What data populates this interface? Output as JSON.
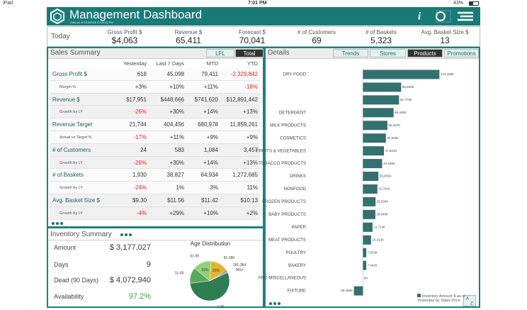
{
  "status_bar": {
    "device": "iPad",
    "time": "7:01 PM",
    "battery": "43%"
  },
  "header": {
    "title": "Management Dashboard",
    "subtitle": "Data as of 9/15/2016 11:00:48 PM"
  },
  "today": {
    "label": "Today",
    "kpis": [
      {
        "label": "Gross Profit $",
        "value": "$4,063"
      },
      {
        "label": "Revenue $",
        "value": "65,411"
      },
      {
        "label": "Forecast $",
        "value": "70,041"
      },
      {
        "label": "# of Customers",
        "value": "69"
      },
      {
        "label": "# of Baskets",
        "value": "5,323"
      },
      {
        "label": "Avg. Basket Size $",
        "value": "13"
      }
    ]
  },
  "sales_summary": {
    "title": "Sales Summary",
    "tabs": [
      "LFL",
      "Total"
    ],
    "active_tab": 1,
    "columns": [
      "Yesterday",
      "Last 7 Days",
      "MTD",
      "YTD"
    ],
    "rows": [
      {
        "label": "Gross Profit $",
        "sub": false,
        "cells": [
          "618",
          "45,098",
          "79,411",
          "-2,329,842"
        ]
      },
      {
        "label": "Margin %",
        "sub": true,
        "cells": [
          "+3%",
          "+10%",
          "+11%",
          "-18%"
        ]
      },
      {
        "label": "Revenue  $",
        "sub": false,
        "cells": [
          "$17,951",
          "$448,666",
          "$741,620",
          "$12,891,442"
        ]
      },
      {
        "label": "Growth by LY",
        "sub": true,
        "cells": [
          "-26%",
          "+30%",
          "+14%",
          "+13%"
        ]
      },
      {
        "label": "Revenue Target",
        "sub": false,
        "cells": [
          "21,744",
          "404,456",
          "680,978",
          "11,859,261"
        ]
      },
      {
        "label": "Actual vs Target %",
        "sub": true,
        "cells": [
          "-17%",
          "+11%",
          "+9%",
          "+9%"
        ]
      },
      {
        "label": "# of Customers",
        "sub": false,
        "cells": [
          "24",
          "583",
          "1,084",
          "3,457"
        ]
      },
      {
        "label": "Growth by LY",
        "sub": true,
        "cells": [
          "-26%",
          "+30%",
          "+14%",
          "+13%"
        ]
      },
      {
        "label": "# of Baskets",
        "sub": false,
        "cells": [
          "1,930",
          "38,827",
          "64,934",
          "1,272,685"
        ]
      },
      {
        "label": "Growth by LY",
        "sub": true,
        "cells": [
          "-24%",
          "1%",
          "3%",
          "11%"
        ]
      },
      {
        "label": "Avg. Basket Size $",
        "sub": false,
        "cells": [
          "$9.30",
          "$11.56",
          "$11.42",
          "$10.13"
        ]
      },
      {
        "label": "Growth by LY",
        "sub": true,
        "cells": [
          "-4%",
          "+29%",
          "+10%",
          "+2%"
        ]
      }
    ]
  },
  "inventory_summary": {
    "title": "Inventory Summary",
    "items": [
      {
        "label": "Amount",
        "value": "$ 3,177,027"
      },
      {
        "label": "Days",
        "value": "9"
      },
      {
        "label": "Dead (90 Days)",
        "value": "$ 4,072,940"
      },
      {
        "label": "Availability",
        "value": "97.2%"
      }
    ]
  },
  "details": {
    "title": "Details",
    "tabs": [
      "Trends",
      "Stores",
      "Products",
      "Promotions"
    ],
    "active_tab": 2
  },
  "chart_data": [
    {
      "type": "pie",
      "title": "Age Distribution",
      "categories": [
        "61-90",
        "91-180",
        "181-364",
        "365+",
        "1-30",
        "31-60"
      ],
      "values": [
        15,
        15,
        1,
        1,
        55,
        13
      ],
      "value_labels": [
        "15%",
        "15%",
        null,
        null,
        null,
        null
      ],
      "colors": [
        "#8fd07a",
        "#e3b52c",
        "#3d6f8e",
        "#9a9a9a",
        "#2f7d52",
        "#5aa85a"
      ]
    },
    {
      "type": "hbar",
      "categories": [
        "DRY FOOD",
        null,
        null,
        "DETERGENT",
        "MILK PRODUCTS",
        "COSMETICS",
        "FRUITS & VEGETABLES",
        "TOBACCO PRODUCTS",
        "DRINKS",
        "NONFOOD",
        "FROZEN PRODUCTS",
        "BABY PRODUCTS",
        "PAPER",
        "MEAT PRODUCTS",
        "POULTRY",
        "BAKERY",
        "FRC-MISCELLANEOUS",
        "FIXTURE"
      ],
      "values": [
        173166,
        86500,
        81776,
        69428,
        55337,
        52045,
        47621,
        43469,
        35055,
        32741,
        28534,
        28046,
        21714,
        18313,
        7553,
        7402,
        0,
        -20469
      ],
      "value_labels": [
        "173,166K",
        "86,500K",
        "81,776K",
        "69,428K",
        "55,337K",
        "52,045K",
        "47,621K",
        "43,469K",
        "35,055K",
        "32,741K",
        "28,534K",
        "28,046K",
        "21,714K",
        "18,313K",
        "7,553K",
        "7,402K",
        "0K",
        "-20,469K"
      ],
      "xlim": [
        -60000,
        240000
      ],
      "color": "#34706e",
      "legend": "Inventory Amount $ as of Yesterday by Sales Price"
    }
  ]
}
